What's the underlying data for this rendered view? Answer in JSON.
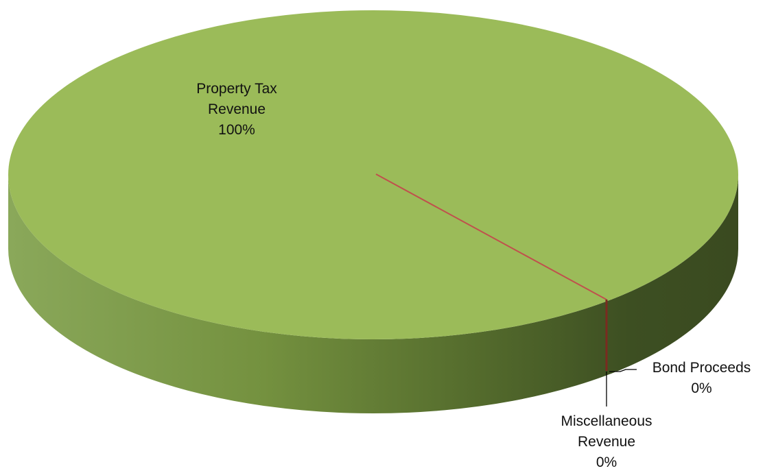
{
  "chart_data": {
    "type": "pie",
    "style": "3d",
    "title": "",
    "slices": [
      {
        "label": "Property Tax Revenue",
        "value": 100,
        "pct_label": "100%",
        "color": "#9bbb59"
      },
      {
        "label": "Miscellaneous Revenue",
        "value": 0,
        "pct_label": "0%",
        "color": "#c0504d"
      },
      {
        "label": "Bond Proceeds",
        "value": 0,
        "pct_label": "0%",
        "color": "#4f81bd"
      }
    ],
    "legend": "none",
    "data_labels": "outside with leader lines"
  },
  "labels": {
    "property_tax": [
      "Property Tax",
      "Revenue",
      "100%"
    ],
    "bond": [
      "Bond Proceeds",
      "0%"
    ],
    "misc": [
      "Miscellaneous",
      "Revenue",
      "0%"
    ]
  }
}
